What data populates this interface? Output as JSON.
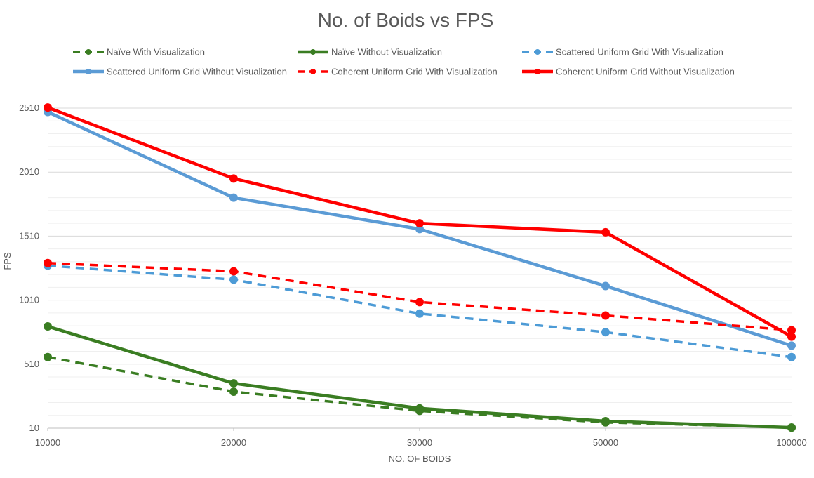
{
  "chart_data": {
    "type": "line",
    "title": "No. of Boids vs FPS",
    "xlabel": "NO. OF BOIDS",
    "ylabel": "FPS",
    "categories": [
      "10000",
      "20000",
      "30000",
      "50000",
      "100000"
    ],
    "yticks": [
      10,
      510,
      1010,
      1510,
      2010,
      2510
    ],
    "ylim": [
      10,
      2510
    ],
    "grid": true,
    "legend_position": "top",
    "series": [
      {
        "name": "Naïve With Visualization",
        "values": [
          565,
          295,
          145,
          55,
          15
        ],
        "color": "#3a7d22",
        "dashed": true
      },
      {
        "name": "Naïve Without Visualization",
        "values": [
          805,
          360,
          165,
          65,
          15
        ],
        "color": "#3a7d22",
        "dashed": false
      },
      {
        "name": "Scattered Uniform Grid With Visualization",
        "values": [
          1280,
          1170,
          905,
          760,
          565
        ],
        "color": "#4d9bd6",
        "dashed": true
      },
      {
        "name": "Scattered Uniform Grid Without Visualization",
        "values": [
          2480,
          1810,
          1565,
          1120,
          655
        ],
        "color": "#5b9bd5",
        "dashed": false
      },
      {
        "name": "Coherent Uniform Grid With Visualization",
        "values": [
          1300,
          1235,
          995,
          890,
          775
        ],
        "color": "#ff0000",
        "dashed": true
      },
      {
        "name": "Coherent Uniform Grid Without Visualization",
        "values": [
          2515,
          1960,
          1610,
          1540,
          725
        ],
        "color": "#ff0000",
        "dashed": false
      }
    ]
  }
}
